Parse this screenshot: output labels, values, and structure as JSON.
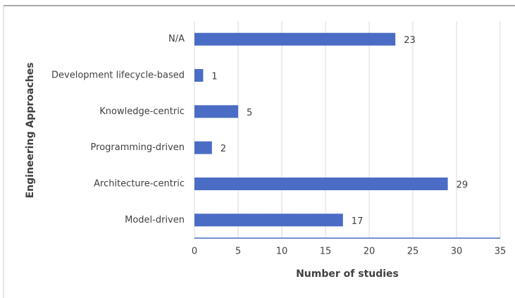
{
  "chart_data": {
    "type": "hbar",
    "categories": [
      "N/A",
      "Development lifecycle-based",
      "Knowledge-centric",
      "Programming-driven",
      "Architecture-centric",
      "Model-driven"
    ],
    "values": [
      23,
      1,
      5,
      2,
      29,
      17
    ],
    "color": "#4a6cc4",
    "xlabel": "Number of studies",
    "ylabel": "Engineering Approaches",
    "xlim": [
      0,
      35
    ],
    "xticks": [
      0,
      5,
      10,
      15,
      20,
      25,
      30,
      35
    ],
    "grid": true
  }
}
